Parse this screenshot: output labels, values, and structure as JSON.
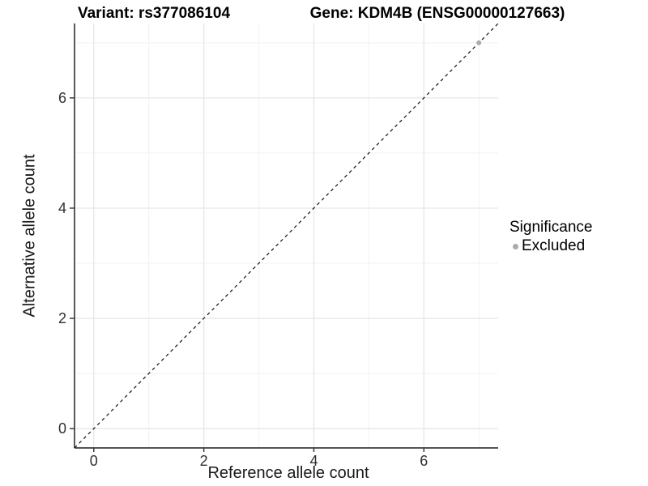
{
  "chart_data": {
    "type": "scatter",
    "title_left": "Variant: rs377086104",
    "title_right": "Gene: KDM4B (ENSG00000127663)",
    "xlabel": "Reference allele count",
    "ylabel": "Alternative allele count",
    "xlim": [
      -0.35,
      7.35
    ],
    "ylim": [
      -0.35,
      7.35
    ],
    "x_major_ticks": [
      0,
      2,
      4,
      6
    ],
    "x_minor_ticks": [
      1,
      3,
      5,
      7
    ],
    "y_major_ticks": [
      0,
      2,
      4,
      6
    ],
    "y_minor_ticks": [
      1,
      3,
      5,
      7
    ],
    "grid": true,
    "identity_line": {
      "style": "dashed",
      "x1": -0.35,
      "y1": -0.35,
      "x2": 7.35,
      "y2": 7.35
    },
    "points": [
      {
        "x": 7,
        "y": 7,
        "series": "Excluded"
      }
    ],
    "legend": {
      "title": "Significance",
      "position": "right",
      "items": [
        {
          "label": "Excluded",
          "color": "#ababab"
        }
      ]
    },
    "colors": {
      "point": "#ababab",
      "grid_major": "#e7e7e7",
      "grid_minor": "#f2f2f2",
      "axis": "#3c3c3c",
      "dashed_line": "#111111",
      "text": "#303030"
    }
  }
}
